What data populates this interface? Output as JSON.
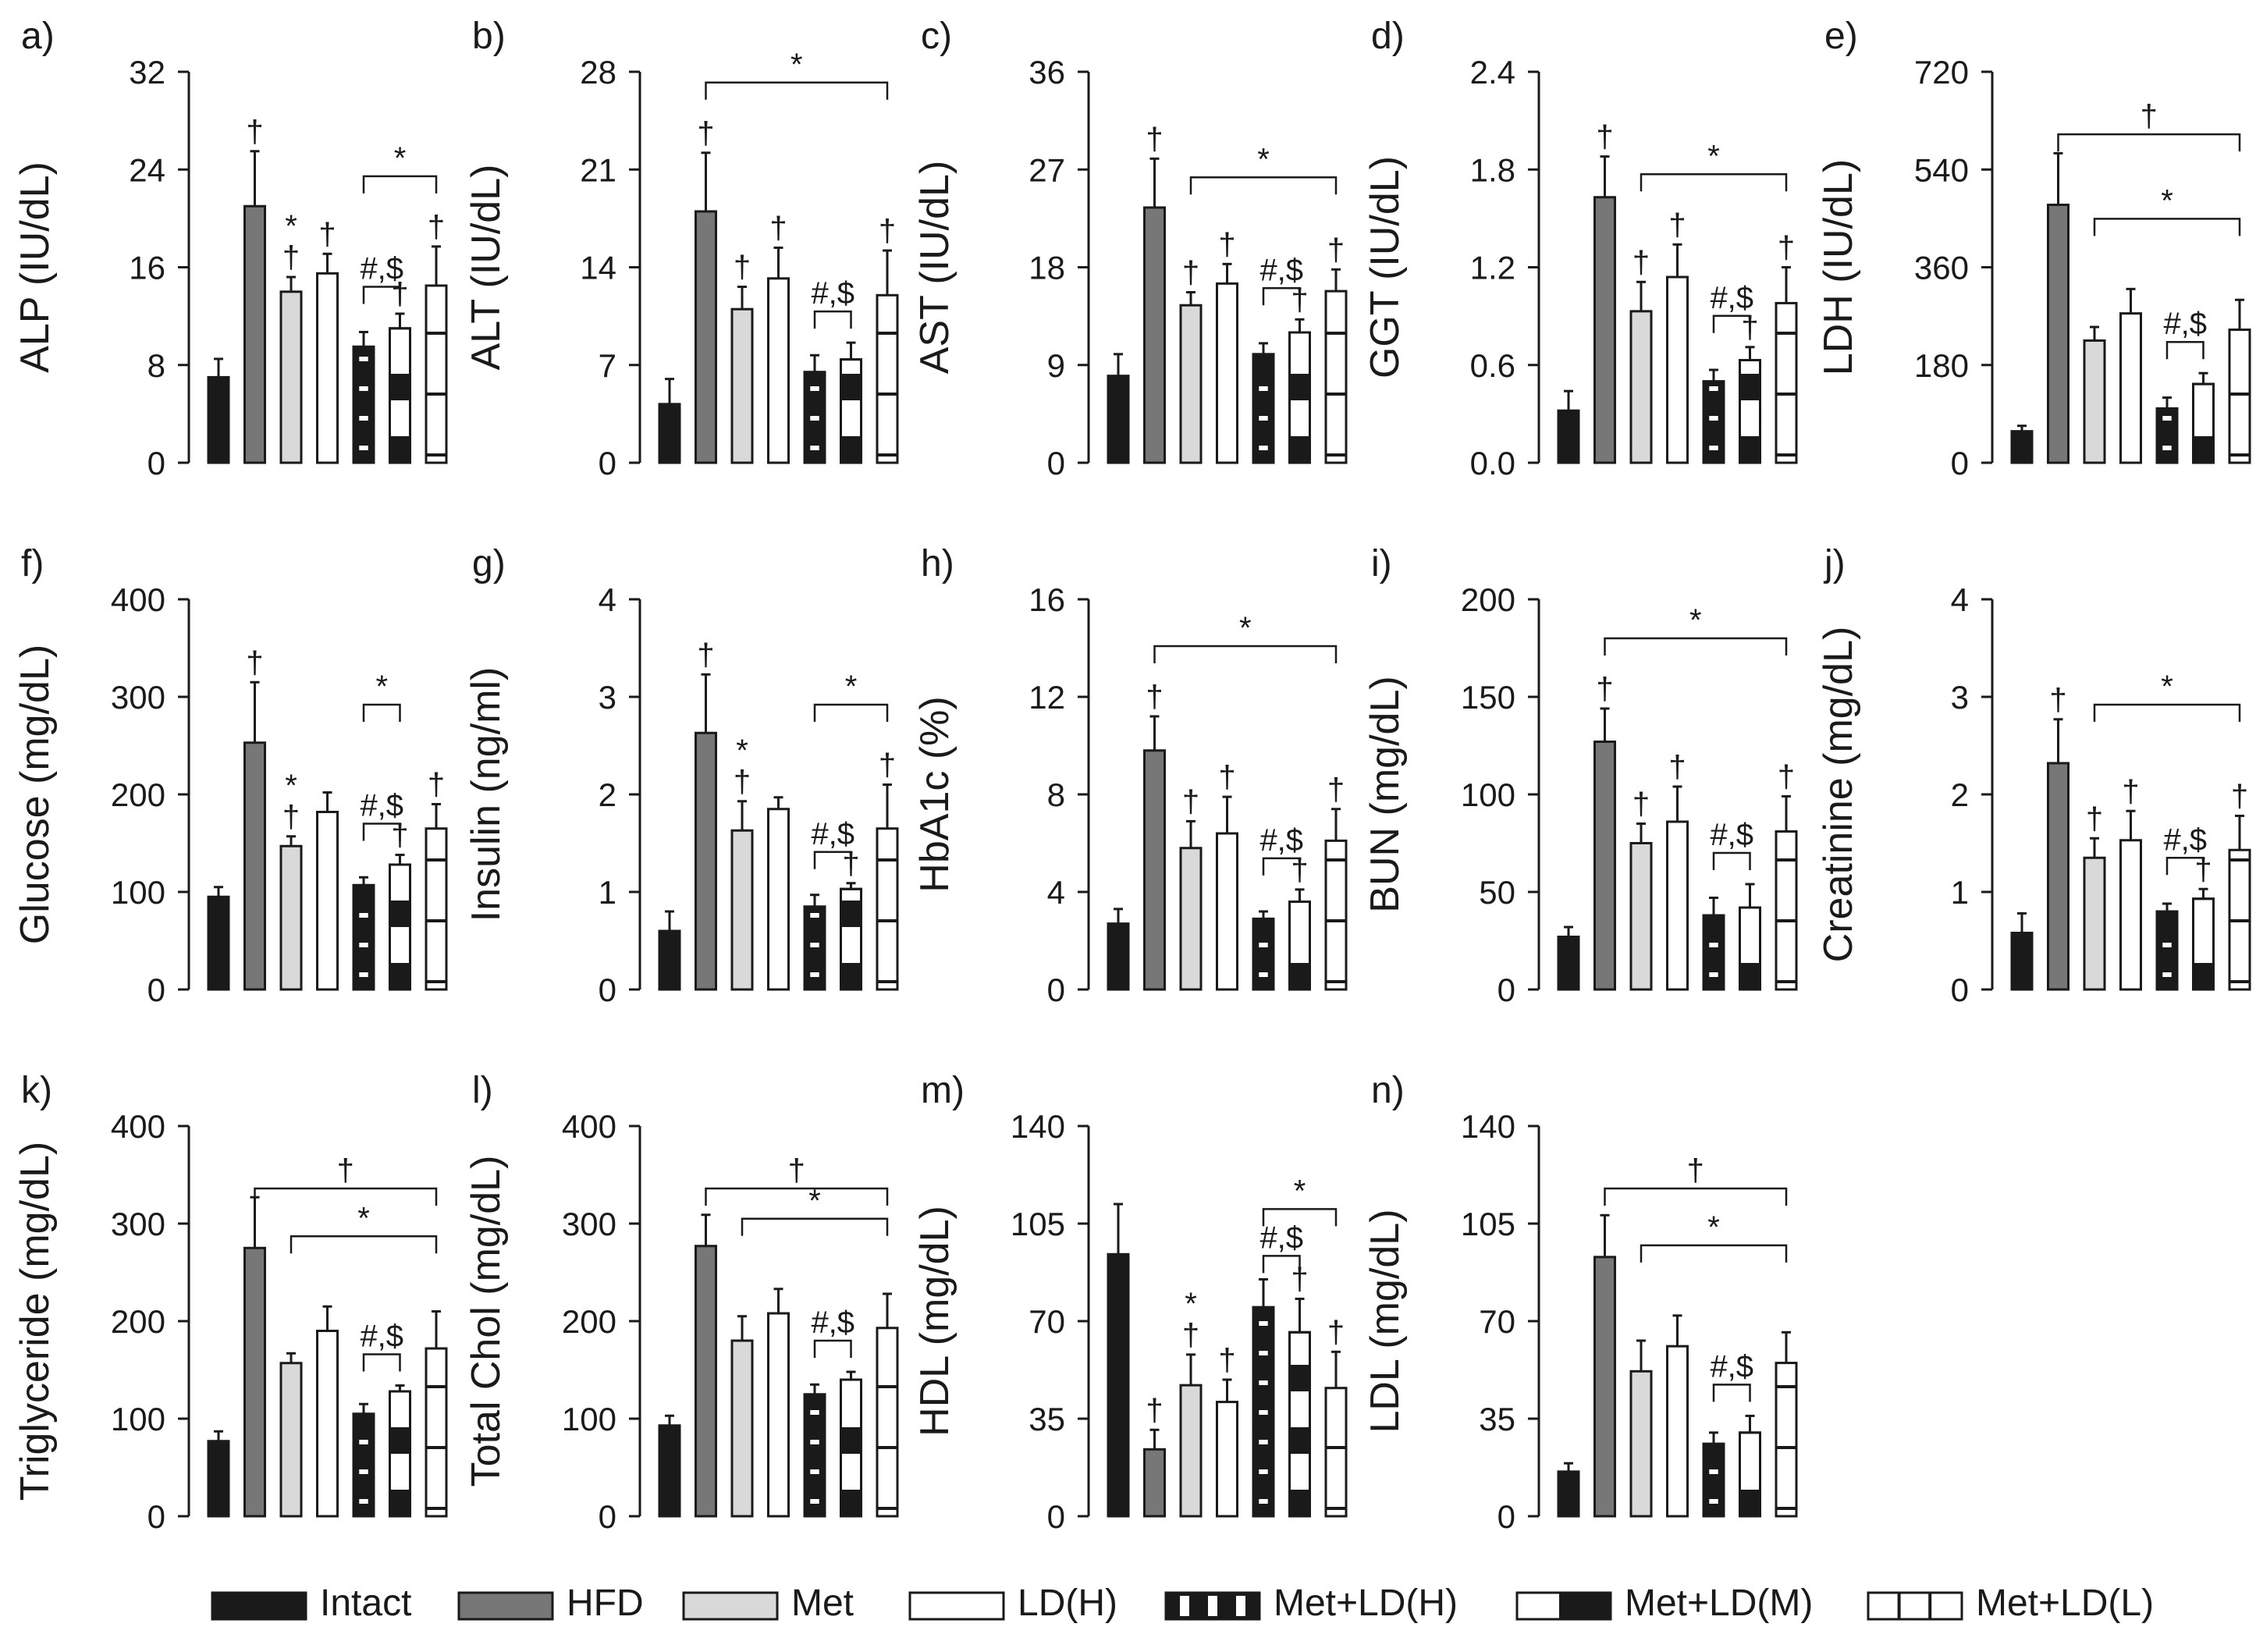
{
  "chart_data": [
    {
      "id": "a",
      "type": "bar",
      "panel_label": "a)",
      "ylabel": "ALP (IU/dL)",
      "ylim": [
        0,
        32
      ],
      "yticks": [
        "0",
        "8",
        "16",
        "24",
        "32"
      ],
      "categories": [
        "Intact",
        "HFD",
        "Met",
        "LD(H)",
        "Met+LD(H)",
        "Met+LD(M)",
        "Met+LD(L)"
      ],
      "values": [
        7,
        21,
        14,
        15.5,
        9.5,
        11,
        14.5
      ],
      "errors": [
        1.5,
        4.5,
        1.2,
        1.6,
        1.2,
        1.2,
        3.2
      ],
      "markers": [
        [],
        [
          "†"
        ],
        [
          "*",
          "†"
        ],
        [
          "†"
        ],
        [],
        [
          "†"
        ],
        [
          "†"
        ]
      ],
      "brackets": [
        {
          "from": 4,
          "to": 6,
          "label": "*"
        },
        {
          "from": 4,
          "to": 5,
          "label": "#,$"
        }
      ]
    },
    {
      "id": "b",
      "type": "bar",
      "panel_label": "b)",
      "ylabel": "ALT (IU/dL)",
      "ylim": [
        0,
        28
      ],
      "yticks": [
        "0",
        "7",
        "14",
        "21",
        "28"
      ],
      "categories": [
        "Intact",
        "HFD",
        "Met",
        "LD(H)",
        "Met+LD(H)",
        "Met+LD(M)",
        "Met+LD(L)"
      ],
      "values": [
        4.2,
        18,
        11,
        13.2,
        6.5,
        7.4,
        12
      ],
      "errors": [
        1.8,
        4.2,
        1.6,
        2.2,
        1.2,
        1.2,
        3.2
      ],
      "markers": [
        [],
        [
          "†"
        ],
        [
          "†"
        ],
        [
          "†"
        ],
        [],
        [],
        [
          "†"
        ]
      ],
      "brackets": [
        {
          "from": 1,
          "to": 6,
          "label": "*"
        },
        {
          "from": 4,
          "to": 5,
          "label": "#,$"
        }
      ]
    },
    {
      "id": "c",
      "type": "bar",
      "panel_label": "c)",
      "ylabel": "AST (IU/dL)",
      "ylim": [
        0,
        36
      ],
      "yticks": [
        "0",
        "9",
        "18",
        "27",
        "36"
      ],
      "categories": [
        "Intact",
        "HFD",
        "Met",
        "LD(H)",
        "Met+LD(H)",
        "Met+LD(M)",
        "Met+LD(L)"
      ],
      "values": [
        8,
        23.5,
        14.5,
        16.5,
        10,
        12,
        15.8
      ],
      "errors": [
        2,
        4.5,
        1.2,
        1.8,
        1,
        1.2,
        2
      ],
      "markers": [
        [],
        [
          "†"
        ],
        [
          "†"
        ],
        [
          "†"
        ],
        [],
        [
          "†"
        ],
        [
          "†"
        ]
      ],
      "brackets": [
        {
          "from": 2,
          "to": 6,
          "label": "*"
        },
        {
          "from": 4,
          "to": 5,
          "label": "#,$"
        }
      ]
    },
    {
      "id": "d",
      "type": "bar",
      "panel_label": "d)",
      "ylabel": "GGT (IU/dL)",
      "ylim": [
        0,
        2.4
      ],
      "yticks": [
        "0.0",
        "0.6",
        "1.2",
        "1.8",
        "2.4"
      ],
      "categories": [
        "Intact",
        "HFD",
        "Met",
        "LD(H)",
        "Met+LD(H)",
        "Met+LD(M)",
        "Met+LD(L)"
      ],
      "values": [
        0.32,
        1.63,
        0.93,
        1.14,
        0.5,
        0.63,
        0.98
      ],
      "errors": [
        0.12,
        0.25,
        0.18,
        0.2,
        0.07,
        0.08,
        0.22
      ],
      "markers": [
        [],
        [
          "†"
        ],
        [
          "†"
        ],
        [
          "†"
        ],
        [],
        [
          "†"
        ],
        [
          "†"
        ]
      ],
      "brackets": [
        {
          "from": 2,
          "to": 6,
          "label": "*"
        },
        {
          "from": 4,
          "to": 5,
          "label": "#,$"
        }
      ]
    },
    {
      "id": "e",
      "type": "bar",
      "panel_label": "e)",
      "ylabel": "LDH (IU/dL)",
      "ylim": [
        0,
        720
      ],
      "yticks": [
        "0",
        "180",
        "360",
        "540",
        "720"
      ],
      "categories": [
        "Intact",
        "HFD",
        "Met",
        "LD(H)",
        "Met+LD(H)",
        "Met+LD(M)",
        "Met+LD(L)"
      ],
      "values": [
        58,
        475,
        225,
        275,
        100,
        145,
        245
      ],
      "errors": [
        10,
        95,
        25,
        45,
        20,
        20,
        55
      ],
      "markers": [
        [],
        [],
        [],
        [],
        [],
        [],
        []
      ],
      "brackets": [
        {
          "from": 1,
          "to": 6,
          "label": "†"
        },
        {
          "from": 2,
          "to": 6,
          "label": "*"
        },
        {
          "from": 4,
          "to": 5,
          "label": "#,$"
        }
      ]
    },
    {
      "id": "f",
      "type": "bar",
      "panel_label": "f)",
      "ylabel": "Glucose (mg/dL)",
      "ylim": [
        0,
        400
      ],
      "yticks": [
        "0",
        "100",
        "200",
        "300",
        "400"
      ],
      "categories": [
        "Intact",
        "HFD",
        "Met",
        "LD(H)",
        "Met+LD(H)",
        "Met+LD(M)",
        "Met+LD(L)"
      ],
      "values": [
        95,
        253,
        147,
        182,
        107,
        128,
        165
      ],
      "errors": [
        10,
        62,
        10,
        20,
        8,
        10,
        25
      ],
      "markers": [
        [],
        [
          "†"
        ],
        [
          "*",
          "†"
        ],
        [],
        [],
        [
          "†"
        ],
        [
          "†"
        ]
      ],
      "brackets": [
        {
          "from": 4,
          "to": 5,
          "label": "*"
        },
        {
          "from": 4,
          "to": 5,
          "label": "#,$"
        }
      ]
    },
    {
      "id": "g",
      "type": "bar",
      "panel_label": "g)",
      "ylabel": "Insulin (ng/ml)",
      "ylim": [
        0,
        4
      ],
      "yticks": [
        "0",
        "1",
        "2",
        "3",
        "4"
      ],
      "categories": [
        "Intact",
        "HFD",
        "Met",
        "LD(H)",
        "Met+LD(H)",
        "Met+LD(M)",
        "Met+LD(L)"
      ],
      "values": [
        0.6,
        2.63,
        1.63,
        1.85,
        0.85,
        1.03,
        1.65
      ],
      "errors": [
        0.2,
        0.6,
        0.3,
        0.12,
        0.12,
        0.06,
        0.45
      ],
      "markers": [
        [],
        [
          "†"
        ],
        [
          "*",
          "†"
        ],
        [],
        [],
        [
          "†"
        ],
        [
          "†"
        ]
      ],
      "brackets": [
        {
          "from": 4,
          "to": 6,
          "label": "*"
        },
        {
          "from": 4,
          "to": 5,
          "label": "#,$"
        }
      ]
    },
    {
      "id": "h",
      "type": "bar",
      "panel_label": "h)",
      "ylabel": "HbA1c (%)",
      "ylim": [
        0,
        16
      ],
      "yticks": [
        "0",
        "4",
        "8",
        "12",
        "16"
      ],
      "categories": [
        "Intact",
        "HFD",
        "Met",
        "LD(H)",
        "Met+LD(H)",
        "Met+LD(M)",
        "Met+LD(L)"
      ],
      "values": [
        2.7,
        9.8,
        5.8,
        6.4,
        2.9,
        3.6,
        6.1
      ],
      "errors": [
        0.6,
        1.4,
        1.1,
        1.5,
        0.3,
        0.5,
        1.3
      ],
      "markers": [
        [],
        [
          "†"
        ],
        [
          "†"
        ],
        [
          "†"
        ],
        [],
        [
          "†"
        ],
        [
          "†"
        ]
      ],
      "brackets": [
        {
          "from": 1,
          "to": 6,
          "label": "*"
        },
        {
          "from": 4,
          "to": 5,
          "label": "#,$"
        }
      ]
    },
    {
      "id": "i",
      "type": "bar",
      "panel_label": "i)",
      "ylabel": "BUN (mg/dL)",
      "ylim": [
        0,
        200
      ],
      "yticks": [
        "0",
        "50",
        "100",
        "150",
        "200"
      ],
      "categories": [
        "Intact",
        "HFD",
        "Met",
        "LD(H)",
        "Met+LD(H)",
        "Met+LD(M)",
        "Met+LD(L)"
      ],
      "values": [
        27,
        127,
        75,
        86,
        38,
        42,
        81
      ],
      "errors": [
        5,
        17,
        10,
        18,
        9,
        12,
        18
      ],
      "markers": [
        [],
        [
          "†"
        ],
        [
          "†"
        ],
        [
          "†"
        ],
        [],
        [],
        [
          "†"
        ]
      ],
      "brackets": [
        {
          "from": 1,
          "to": 6,
          "label": "*"
        },
        {
          "from": 4,
          "to": 5,
          "label": "#,$"
        }
      ]
    },
    {
      "id": "j",
      "type": "bar",
      "panel_label": "j)",
      "ylabel": "Creatinine (mg/dL)",
      "ylim": [
        0,
        4
      ],
      "yticks": [
        "0",
        "1",
        "2",
        "3",
        "4"
      ],
      "categories": [
        "Intact",
        "HFD",
        "Met",
        "LD(H)",
        "Met+LD(H)",
        "Met+LD(M)",
        "Met+LD(L)"
      ],
      "values": [
        0.58,
        2.32,
        1.35,
        1.53,
        0.8,
        0.93,
        1.43
      ],
      "errors": [
        0.2,
        0.45,
        0.2,
        0.3,
        0.08,
        0.1,
        0.35
      ],
      "markers": [
        [],
        [
          "†"
        ],
        [
          "†"
        ],
        [
          "†"
        ],
        [],
        [
          "†"
        ],
        [
          "†"
        ]
      ],
      "brackets": [
        {
          "from": 2,
          "to": 6,
          "label": "*"
        },
        {
          "from": 4,
          "to": 5,
          "label": "#,$"
        }
      ]
    },
    {
      "id": "k",
      "type": "bar",
      "panel_label": "k)",
      "ylabel": "Triglyceride (mg/dL)",
      "ylim": [
        0,
        400
      ],
      "yticks": [
        "0",
        "100",
        "200",
        "300",
        "400"
      ],
      "categories": [
        "Intact",
        "HFD",
        "Met",
        "LD(H)",
        "Met+LD(H)",
        "Met+LD(M)",
        "Met+LD(L)"
      ],
      "values": [
        77,
        275,
        157,
        190,
        105,
        128,
        172
      ],
      "errors": [
        10,
        52,
        10,
        25,
        10,
        6,
        38
      ],
      "markers": [
        [],
        [],
        [],
        [],
        [],
        [],
        []
      ],
      "brackets": [
        {
          "from": 1,
          "to": 6,
          "label": "†"
        },
        {
          "from": 2,
          "to": 6,
          "label": "*"
        },
        {
          "from": 4,
          "to": 5,
          "label": "#,$"
        }
      ]
    },
    {
      "id": "l",
      "type": "bar",
      "panel_label": "l)",
      "ylabel": "Total Chol (mg/dL)",
      "ylim": [
        0,
        400
      ],
      "yticks": [
        "0",
        "100",
        "200",
        "300",
        "400"
      ],
      "categories": [
        "Intact",
        "HFD",
        "Met",
        "LD(H)",
        "Met+LD(H)",
        "Met+LD(M)",
        "Met+LD(L)"
      ],
      "values": [
        93,
        277,
        180,
        208,
        125,
        140,
        193
      ],
      "errors": [
        10,
        32,
        25,
        25,
        10,
        8,
        35
      ],
      "markers": [
        [],
        [],
        [],
        [],
        [],
        [],
        []
      ],
      "brackets": [
        {
          "from": 1,
          "to": 6,
          "label": "†"
        },
        {
          "from": 2,
          "to": 6,
          "label": "*"
        },
        {
          "from": 4,
          "to": 5,
          "label": "#,$"
        }
      ]
    },
    {
      "id": "m",
      "type": "bar",
      "panel_label": "m)",
      "ylabel": "HDL (mg/dL)",
      "ylim": [
        0,
        140
      ],
      "yticks": [
        "0",
        "35",
        "70",
        "105",
        "140"
      ],
      "categories": [
        "Intact",
        "HFD",
        "Met",
        "LD(H)",
        "Met+LD(H)",
        "Met+LD(M)",
        "Met+LD(L)"
      ],
      "values": [
        94,
        24,
        47,
        41,
        75,
        66,
        46
      ],
      "errors": [
        18,
        7,
        11,
        8,
        10,
        12,
        13
      ],
      "markers": [
        [],
        [
          "†"
        ],
        [
          "*",
          "†"
        ],
        [
          "†"
        ],
        [],
        [
          "†"
        ],
        [
          "†"
        ]
      ],
      "brackets": [
        {
          "from": 4,
          "to": 6,
          "label": "*"
        },
        {
          "from": 4,
          "to": 5,
          "label": "#,$"
        }
      ]
    },
    {
      "id": "n",
      "type": "bar",
      "panel_label": "n)",
      "ylabel": "LDL (mg/dL)",
      "ylim": [
        0,
        140
      ],
      "yticks": [
        "0",
        "35",
        "70",
        "105",
        "140"
      ],
      "categories": [
        "Intact",
        "HFD",
        "Met",
        "LD(H)",
        "Met+LD(H)",
        "Met+LD(M)",
        "Met+LD(L)"
      ],
      "values": [
        16,
        93,
        52,
        61,
        26,
        30,
        55
      ],
      "errors": [
        3,
        15,
        11,
        11,
        4,
        6,
        11
      ],
      "markers": [
        [],
        [],
        [],
        [],
        [],
        [],
        []
      ],
      "brackets": [
        {
          "from": 1,
          "to": 6,
          "label": "†"
        },
        {
          "from": 2,
          "to": 6,
          "label": "*"
        },
        {
          "from": 4,
          "to": 5,
          "label": "#,$"
        }
      ]
    }
  ],
  "legend": [
    {
      "label": "Intact",
      "style": "solid-black"
    },
    {
      "label": "HFD",
      "style": "solid-gray"
    },
    {
      "label": "Met",
      "style": "solid-lightgray"
    },
    {
      "label": "LD(H)",
      "style": "white"
    },
    {
      "label": "Met+LD(H)",
      "style": "black-white-dashes"
    },
    {
      "label": "Met+LD(M)",
      "style": "white-black-block"
    },
    {
      "label": "Met+LD(L)",
      "style": "white-black-lines"
    }
  ],
  "colors": {
    "intact": "#1a1a1a",
    "hfd": "#777777",
    "met": "#d9d9d9",
    "white": "#ffffff",
    "line": "#1a1a1a"
  }
}
